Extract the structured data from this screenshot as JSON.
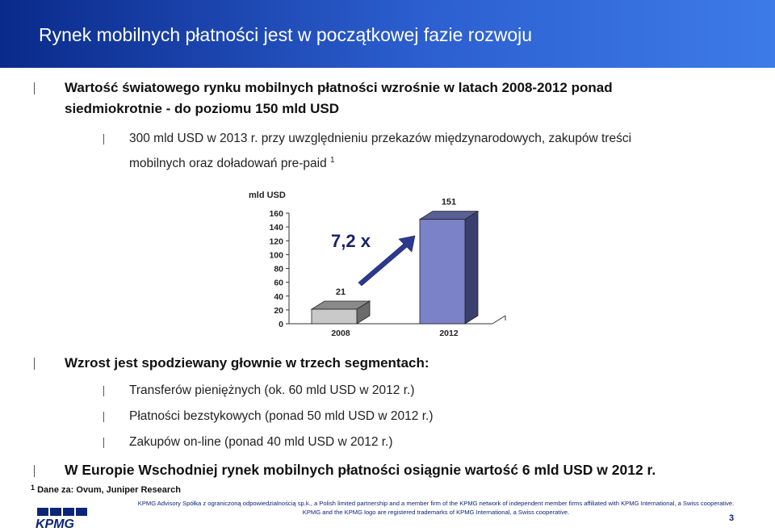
{
  "header": {
    "title": "Rynek mobilnych płatności jest w początkowej fazie rozwoju"
  },
  "bullets": [
    {
      "text_line1": "Wartość światowego rynku mobilnych płatności wzrośnie w latach 2008-2012 ponad",
      "text_line2": "siedmiokrotnie - do poziomu 150 mld USD",
      "sub": [
        {
          "line1": "300 mld USD w 2013 r. przy uwzględnieniu przekazów międzynarodowych, zakupów treści",
          "line2": "mobilnych oraz doładowań pre-paid",
          "sup": "1"
        }
      ]
    },
    {
      "text": "Wzrost jest spodziewany głownie w trzech segmentach:",
      "sub": [
        {
          "text": "Transferów pieniężnych (ok. 60 mld USD w 2012 r.)"
        },
        {
          "text": "Płatności bezstykowych (ponad 50 mld USD w 2012 r.)"
        },
        {
          "text": "Zakupów on-line (ponad 40 mld USD w 2012 r.)"
        }
      ]
    },
    {
      "text": "W Europie Wschodniej rynek mobilnych płatności osiągnie wartość 6 mld USD w 2012 r."
    }
  ],
  "chart_data": {
    "type": "bar",
    "ylabel": "mld USD",
    "categories": [
      "2008",
      "2012"
    ],
    "values": [
      21,
      151
    ],
    "data_labels": [
      "21",
      "151"
    ],
    "ylim": [
      0,
      160
    ],
    "yticks": [
      0,
      20,
      40,
      60,
      80,
      100,
      120,
      140,
      160
    ],
    "annotation": "7,2 x",
    "colors": {
      "bar_2008": "#c9c9c9",
      "bar_2012": "#7b82c8",
      "side": "#3a3f6e",
      "top": "#5a5f95",
      "arrow": "#2b3a8f"
    }
  },
  "footnote": {
    "sup": "1",
    "text": "Dane za: Ovum, Juniper Research"
  },
  "footer": {
    "line1": "KPMG Advisory Spółka z ograniczoną odpowiedzialnością sp.k., a Polish limited partnership and a member firm of the KPMG network of independent member firms affiliated with KPMG International, a Swiss cooperative.",
    "line2": "KPMG and the KPMG logo are registered trademarks of KPMG International, a Swiss cooperative.",
    "page": "3",
    "logo": "KPMG"
  }
}
